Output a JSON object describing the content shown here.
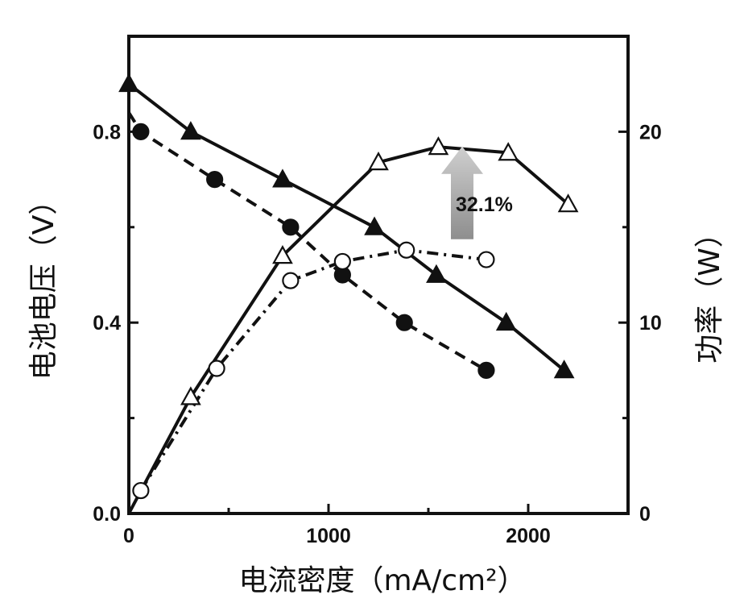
{
  "chart_data": {
    "type": "line",
    "title": "",
    "xlabel": "电流密度（mA/cm²）",
    "ylabel_left": "电池电压（V）",
    "ylabel_right": "功率（W）",
    "xlim": [
      0,
      2500
    ],
    "ylim_left": [
      0,
      1.0
    ],
    "ylim_right": [
      0,
      25
    ],
    "x_ticks": [
      0,
      1000,
      2000
    ],
    "x_tick_labels": [
      "0",
      "1000",
      "2000"
    ],
    "y_left_ticks": [
      0.0,
      0.4,
      0.8
    ],
    "y_left_tick_labels": [
      "0.0",
      "0.4",
      "0.8"
    ],
    "y_right_ticks": [
      0,
      10,
      20
    ],
    "y_right_tick_labels": [
      "0",
      "10",
      "20"
    ],
    "grid": false,
    "series": [
      {
        "name": "voltage-filled-triangle",
        "axis": "left",
        "marker": "triangle",
        "filled": true,
        "line": "solid",
        "x": [
          0,
          310,
          770,
          1230,
          1540,
          1890,
          2180
        ],
        "y": [
          0.9,
          0.8,
          0.7,
          0.6,
          0.5,
          0.4,
          0.3
        ]
      },
      {
        "name": "voltage-filled-circle",
        "axis": "left",
        "marker": "circle",
        "filled": true,
        "line": "dashed",
        "x": [
          0,
          60,
          430,
          810,
          1070,
          1380,
          1790
        ],
        "y": [
          0.84,
          0.8,
          0.7,
          0.6,
          0.5,
          0.4,
          0.3
        ]
      },
      {
        "name": "power-open-triangle",
        "axis": "right",
        "marker": "triangle",
        "filled": false,
        "line": "solid",
        "x": [
          0,
          310,
          770,
          1250,
          1550,
          1900,
          2200
        ],
        "y": [
          0,
          6.1,
          13.5,
          18.4,
          19.2,
          18.9,
          16.2
        ]
      },
      {
        "name": "power-open-circle",
        "axis": "right",
        "marker": "circle",
        "filled": false,
        "line": "dashdot",
        "x": [
          60,
          440,
          810,
          1070,
          1390,
          1790
        ],
        "y": [
          1.2,
          7.6,
          12.2,
          13.2,
          13.8,
          13.3
        ]
      }
    ],
    "annotations": [
      {
        "text": "32.1%",
        "x": 1750,
        "y_right": 15.0,
        "kind": "up-arrow"
      }
    ]
  }
}
